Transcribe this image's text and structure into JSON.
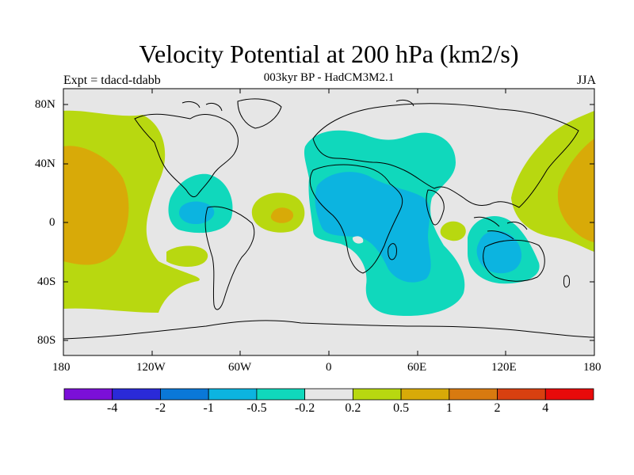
{
  "title": "Velocity Potential at 200 hPa (km2/s)",
  "subtitle": "003kyr BP - HadCM3M2.1",
  "left_label": "Expt = tdacd-tdabb",
  "right_label": "JJA",
  "lat_labels": [
    "80N",
    "40N",
    "0",
    "40S",
    "80S"
  ],
  "lon_labels": [
    "180",
    "120W",
    "60W",
    "0",
    "60E",
    "120E",
    "180"
  ],
  "colorbar": {
    "ticks": [
      "-4",
      "-2",
      "-1",
      "-0.5",
      "-0.2",
      "0.2",
      "0.5",
      "1",
      "2",
      "4"
    ],
    "colors": [
      "#7b0fd8",
      "#2a2ad8",
      "#0a78d8",
      "#0cb4e0",
      "#10d8bc",
      "#e6e6e6",
      "#b8d810",
      "#d8aa08",
      "#d87a10",
      "#d84010",
      "#e80a0a"
    ]
  },
  "colors": {
    "land_background": "#e6e6e6",
    "neg_light": "#10d8bc",
    "neg_mid": "#0cb4e0",
    "pos_light": "#b8d810",
    "pos_mid": "#d8aa08"
  }
}
